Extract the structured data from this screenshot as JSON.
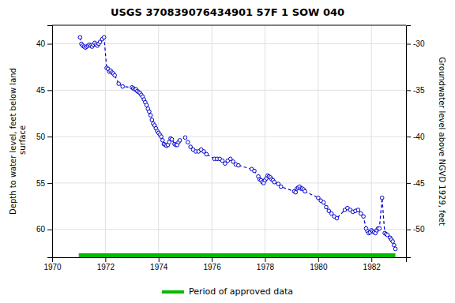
{
  "chart_data": {
    "type": "line",
    "title": "USGS 370839076434901 57F  1 SOW 040",
    "y_label": "Depth to water level, feet below land\n surface",
    "y2_label": "Groundwater level above NGVD 1929, feet",
    "xlim": [
      1970.0,
      1983.3
    ],
    "xticks": [
      1970,
      1972,
      1974,
      1976,
      1978,
      1980,
      1982
    ],
    "ylim": [
      63.0,
      38.0
    ],
    "yticks": [
      40,
      45,
      50,
      55,
      60
    ],
    "y2lim": [
      -53.0,
      -28.0
    ],
    "y2ticks": [
      -30,
      -35,
      -40,
      -45,
      -50
    ],
    "grid": true,
    "legend": "bottom",
    "x": [
      1971.05,
      1971.1,
      1971.15,
      1971.2,
      1971.25,
      1971.3,
      1971.35,
      1971.4,
      1971.45,
      1971.5,
      1971.55,
      1971.6,
      1971.65,
      1971.7,
      1971.75,
      1971.8,
      1971.88,
      1971.95,
      1972.05,
      1972.1,
      1972.15,
      1972.2,
      1972.25,
      1972.3,
      1972.35,
      1972.5,
      1972.65,
      1973.0,
      1973.05,
      1973.1,
      1973.15,
      1973.2,
      1973.25,
      1973.3,
      1973.35,
      1973.4,
      1973.45,
      1973.5,
      1973.55,
      1973.6,
      1973.65,
      1973.7,
      1973.75,
      1973.8,
      1973.85,
      1973.9,
      1973.95,
      1974.0,
      1974.05,
      1974.1,
      1974.15,
      1974.2,
      1974.25,
      1974.3,
      1974.35,
      1974.4,
      1974.45,
      1974.5,
      1974.6,
      1974.65,
      1974.7,
      1974.75,
      1974.8,
      1975.0,
      1975.1,
      1975.2,
      1975.3,
      1975.4,
      1975.5,
      1975.6,
      1975.7,
      1975.8,
      1976.1,
      1976.2,
      1976.3,
      1976.4,
      1976.5,
      1976.6,
      1976.7,
      1976.8,
      1976.9,
      1977.0,
      1977.5,
      1977.6,
      1977.75,
      1977.8,
      1977.85,
      1977.9,
      1977.95,
      1978.0,
      1978.05,
      1978.1,
      1978.15,
      1978.2,
      1978.25,
      1978.3,
      1978.35,
      1978.5,
      1978.6,
      1979.1,
      1979.15,
      1979.2,
      1979.25,
      1979.3,
      1979.35,
      1979.4,
      1979.45,
      1979.5,
      1980.0,
      1980.1,
      1980.2,
      1980.3,
      1980.4,
      1980.5,
      1980.6,
      1980.7,
      1981.0,
      1981.1,
      1981.2,
      1981.3,
      1981.4,
      1981.5,
      1981.6,
      1981.7,
      1981.8,
      1981.85,
      1981.9,
      1981.95,
      1982.0,
      1982.05,
      1982.1,
      1982.15,
      1982.2,
      1982.25,
      1982.3,
      1982.4,
      1982.5,
      1982.55,
      1982.6,
      1982.7,
      1982.75,
      1982.8,
      1982.85,
      1982.9
    ],
    "series": [
      {
        "color": "#0000cc",
        "marker": "circle",
        "line_style": "dashed",
        "values": [
          39.3,
          40.0,
          40.2,
          40.3,
          40.4,
          40.3,
          40.2,
          40.1,
          40.2,
          40.3,
          40.1,
          39.9,
          40.1,
          40.2,
          40.0,
          39.8,
          39.5,
          39.3,
          42.6,
          42.7,
          43.0,
          42.9,
          43.1,
          43.2,
          43.4,
          44.3,
          44.6,
          44.7,
          44.8,
          44.9,
          44.9,
          45.1,
          45.2,
          45.3,
          45.5,
          45.7,
          46.0,
          46.3,
          46.6,
          47.0,
          47.3,
          47.7,
          48.2,
          48.6,
          48.8,
          49.1,
          49.4,
          49.6,
          49.8,
          50.0,
          50.4,
          50.8,
          50.9,
          51.0,
          50.9,
          50.6,
          50.2,
          50.3,
          50.8,
          50.9,
          50.9,
          50.6,
          50.4,
          50.1,
          50.6,
          51.1,
          51.4,
          51.6,
          51.6,
          51.4,
          51.6,
          51.9,
          52.4,
          52.4,
          52.4,
          52.6,
          52.9,
          52.6,
          52.4,
          52.7,
          53.0,
          53.1,
          53.5,
          53.7,
          54.3,
          54.6,
          54.7,
          54.9,
          55.0,
          54.7,
          54.5,
          54.2,
          54.3,
          54.4,
          54.6,
          54.7,
          54.9,
          55.1,
          55.4,
          55.9,
          56.0,
          55.6,
          55.5,
          55.4,
          55.6,
          55.6,
          55.7,
          55.9,
          56.6,
          56.9,
          57.1,
          57.6,
          58.0,
          58.3,
          58.6,
          58.8,
          57.9,
          57.7,
          57.9,
          58.1,
          58.0,
          57.9,
          58.3,
          58.6,
          59.9,
          60.2,
          60.4,
          60.3,
          60.1,
          60.2,
          60.3,
          60.4,
          60.1,
          59.9,
          59.9,
          56.6,
          60.4,
          60.5,
          60.6,
          60.9,
          61.1,
          61.3,
          61.7,
          62.1
        ]
      }
    ],
    "period": {
      "name": "Period of approved data",
      "color": "#00bb00",
      "start": 1971.0,
      "end": 1982.9
    }
  }
}
